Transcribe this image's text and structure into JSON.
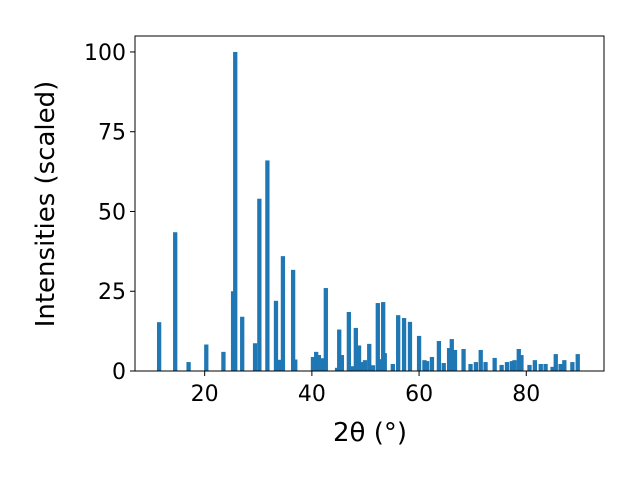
{
  "chart_data": {
    "type": "bar",
    "x_label": "2θ (°)",
    "y_label": "Intensities (scaled)",
    "color": "#1f77b4",
    "grid": false,
    "x": [
      11.5,
      14.5,
      17.0,
      20.3,
      23.5,
      25.3,
      25.7,
      27.0,
      29.4,
      30.2,
      31.7,
      33.3,
      33.9,
      34.6,
      36.5,
      36.9,
      40.2,
      40.8,
      41.3,
      42.1,
      42.6,
      44.7,
      45.1,
      45.6,
      46.9,
      47.7,
      48.2,
      48.8,
      49.3,
      49.9,
      50.7,
      51.4,
      52.3,
      52.9,
      53.3,
      53.6,
      55.1,
      56.1,
      57.2,
      58.3,
      60.0,
      61.0,
      61.5,
      62.4,
      63.7,
      64.6,
      65.6,
      66.1,
      66.7,
      68.3,
      69.6,
      70.6,
      71.5,
      72.4,
      74.1,
      75.4,
      76.4,
      77.3,
      77.8,
      78.6,
      79.1,
      80.6,
      81.6,
      82.7,
      83.6,
      84.9,
      85.5,
      86.4,
      87.1,
      88.6,
      89.6
    ],
    "values": [
      15.3,
      43.5,
      2.8,
      8.3,
      6,
      25,
      100,
      17,
      8.7,
      54,
      66,
      22,
      3.5,
      36,
      31.7,
      3.6,
      4.4,
      6,
      5,
      4,
      26,
      1,
      13,
      5,
      18.5,
      1.5,
      13.5,
      8,
      2.8,
      3.4,
      8.5,
      1.8,
      21.3,
      3.7,
      21.6,
      5.6,
      2.2,
      17.5,
      16.6,
      15.4,
      11,
      3.4,
      3.1,
      4.4,
      9.4,
      2.5,
      7.2,
      10,
      6.6,
      6.9,
      2.2,
      2.8,
      6.6,
      2.8,
      4.1,
      1.9,
      2.8,
      3.1,
      3.4,
      6.9,
      5,
      1.9,
      3.4,
      2.2,
      2.2,
      1.3,
      5.3,
      2.2,
      3.4,
      2.8,
      5.3
    ],
    "xlim": [
      7,
      94.5
    ],
    "ylim": [
      0,
      105
    ],
    "xticks": [
      20,
      40,
      60,
      80
    ],
    "yticks": [
      0,
      25,
      50,
      75,
      100
    ]
  }
}
